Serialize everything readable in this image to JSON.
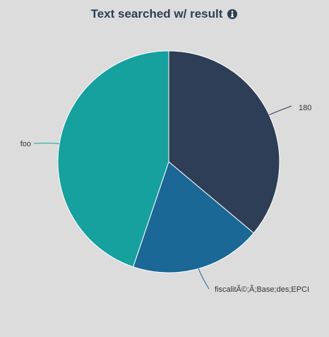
{
  "chart_data": {
    "type": "pie",
    "title": "Text searched w/ result",
    "title_icon": "info-icon",
    "slices": [
      {
        "label": "180",
        "share": 0.361,
        "color": "#2d3e56"
      },
      {
        "label": "fiscalitÃ©;Ã;Base;des;EPCI",
        "share": 0.191,
        "color": "#1b6796"
      },
      {
        "label": "foo",
        "share": 0.448,
        "color": "#16a09e"
      }
    ],
    "legend": "none"
  }
}
